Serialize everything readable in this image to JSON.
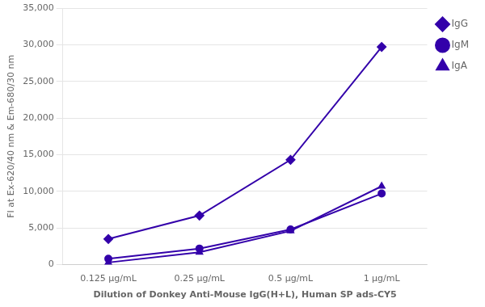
{
  "chart_data": {
    "type": "line",
    "categories": [
      "0.125 μg/mL",
      "0.25 μg/mL",
      "0.5 μg/mL",
      "1 μg/mL"
    ],
    "series": [
      {
        "name": "IgG",
        "color": "#3300aa",
        "marker": "diamond",
        "values": [
          3500,
          6700,
          14300,
          29700
        ]
      },
      {
        "name": "IgM",
        "color": "#3300aa",
        "marker": "circle",
        "values": [
          800,
          2200,
          4800,
          9700
        ]
      },
      {
        "name": "IgA",
        "color": "#3300aa",
        "marker": "triangle",
        "values": [
          300,
          1700,
          4600,
          10700
        ]
      }
    ],
    "xlabel": "Dilution of Donkey Anti-Mouse IgG(H+L), Human SP ads-CY5",
    "ylabel": "FI at Ex-620/40 nm & Em-680/30 nm",
    "ylim": [
      0,
      35000
    ],
    "yticks": [
      0,
      {
        "value": 5000,
        "label": "5,000"
      },
      {
        "value": 10000,
        "label": "10,000"
      },
      {
        "value": 15000,
        "label": "15,000"
      },
      {
        "value": 20000,
        "label": "20,000"
      },
      {
        "value": 25000,
        "label": "25,000"
      },
      {
        "value": 30000,
        "label": "30,000"
      },
      {
        "value": 35000,
        "label": "35,000"
      }
    ],
    "grid": true,
    "legend": "right"
  }
}
